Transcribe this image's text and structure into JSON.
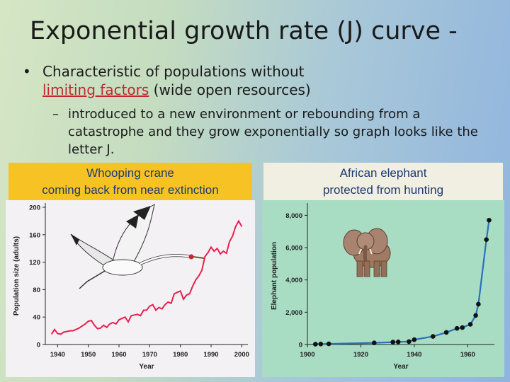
{
  "slide": {
    "title": "Exponential growth rate (J) curve -",
    "bullet_dot": "•",
    "bullet_link": "limiting factors",
    "bullet_before": "Characteristic of populations without",
    "bullet_after": " (wide open resources)",
    "sub_dash": "–",
    "sub_text": "introduced to a new environment or rebounding from a catastrophe and they grow exponentially so graph looks like the letter J."
  },
  "panels": {
    "left_caption_line1": "Whooping crane",
    "left_caption_line2": "coming back from near extinction",
    "right_caption_line1": "African elephant",
    "right_caption_line2": "protected from hunting",
    "left_illustration": "whooping-crane-illustration",
    "right_illustration": "elephant-illustration"
  },
  "chart_data": [
    {
      "type": "line",
      "xlabel": "Year",
      "ylabel": "Population size (adults)",
      "xlim": [
        1936,
        2002
      ],
      "ylim": [
        0,
        200
      ],
      "xticks": [
        1940,
        1950,
        1960,
        1970,
        1980,
        1990,
        2000
      ],
      "yticks": [
        0,
        40,
        80,
        120,
        160,
        200
      ],
      "line_color": "#e8204f",
      "background": "#f4f1f4",
      "series": [
        {
          "x": [
            1938,
            1939,
            1940,
            1941,
            1942,
            1943,
            1944,
            1945,
            1946,
            1947,
            1948,
            1949,
            1950,
            1951,
            1952,
            1953,
            1954,
            1955,
            1956,
            1957,
            1958,
            1959,
            1960,
            1961,
            1962,
            1963,
            1964,
            1965,
            1966,
            1967,
            1968,
            1969,
            1970,
            1971,
            1972,
            1973,
            1974,
            1975,
            1976,
            1977,
            1978,
            1979,
            1980,
            1981,
            1982,
            1983,
            1984,
            1985,
            1986,
            1987,
            1988,
            1989,
            1990,
            1991,
            1992,
            1993,
            1994,
            1995,
            1996,
            1997,
            1998,
            1999,
            2000
          ],
          "y": [
            15,
            22,
            16,
            15,
            18,
            19,
            20,
            20,
            22,
            24,
            27,
            30,
            34,
            35,
            28,
            23,
            24,
            28,
            25,
            30,
            32,
            30,
            36,
            38,
            40,
            33,
            42,
            43,
            44,
            42,
            50,
            50,
            56,
            58,
            50,
            54,
            52,
            58,
            62,
            60,
            74,
            76,
            78,
            66,
            72,
            74,
            85,
            94,
            100,
            108,
            128,
            134,
            142,
            136,
            140,
            132,
            136,
            133,
            150,
            158,
            172,
            180,
            172
          ]
        }
      ]
    },
    {
      "type": "line",
      "xlabel": "Year",
      "ylabel": "Elephant population",
      "xlim": [
        1900,
        1970
      ],
      "ylim": [
        0,
        8500
      ],
      "xticks": [
        1900,
        1920,
        1940,
        1960
      ],
      "yticks": [
        0,
        2000,
        4000,
        6000,
        8000
      ],
      "ytick_labels": [
        "0",
        "2,000",
        "4,000",
        "6,000",
        "8,000"
      ],
      "line_color": "#2a6fc0",
      "background": "#a8dcc3",
      "series": [
        {
          "x": [
            1903,
            1905,
            1908,
            1925,
            1932,
            1934,
            1938,
            1940,
            1947,
            1952,
            1956,
            1958,
            1961,
            1963,
            1964,
            1967,
            1968
          ],
          "y": [
            20,
            30,
            40,
            100,
            150,
            160,
            180,
            300,
            500,
            750,
            1000,
            1050,
            1250,
            1800,
            2500,
            6500,
            7700
          ]
        }
      ]
    }
  ]
}
